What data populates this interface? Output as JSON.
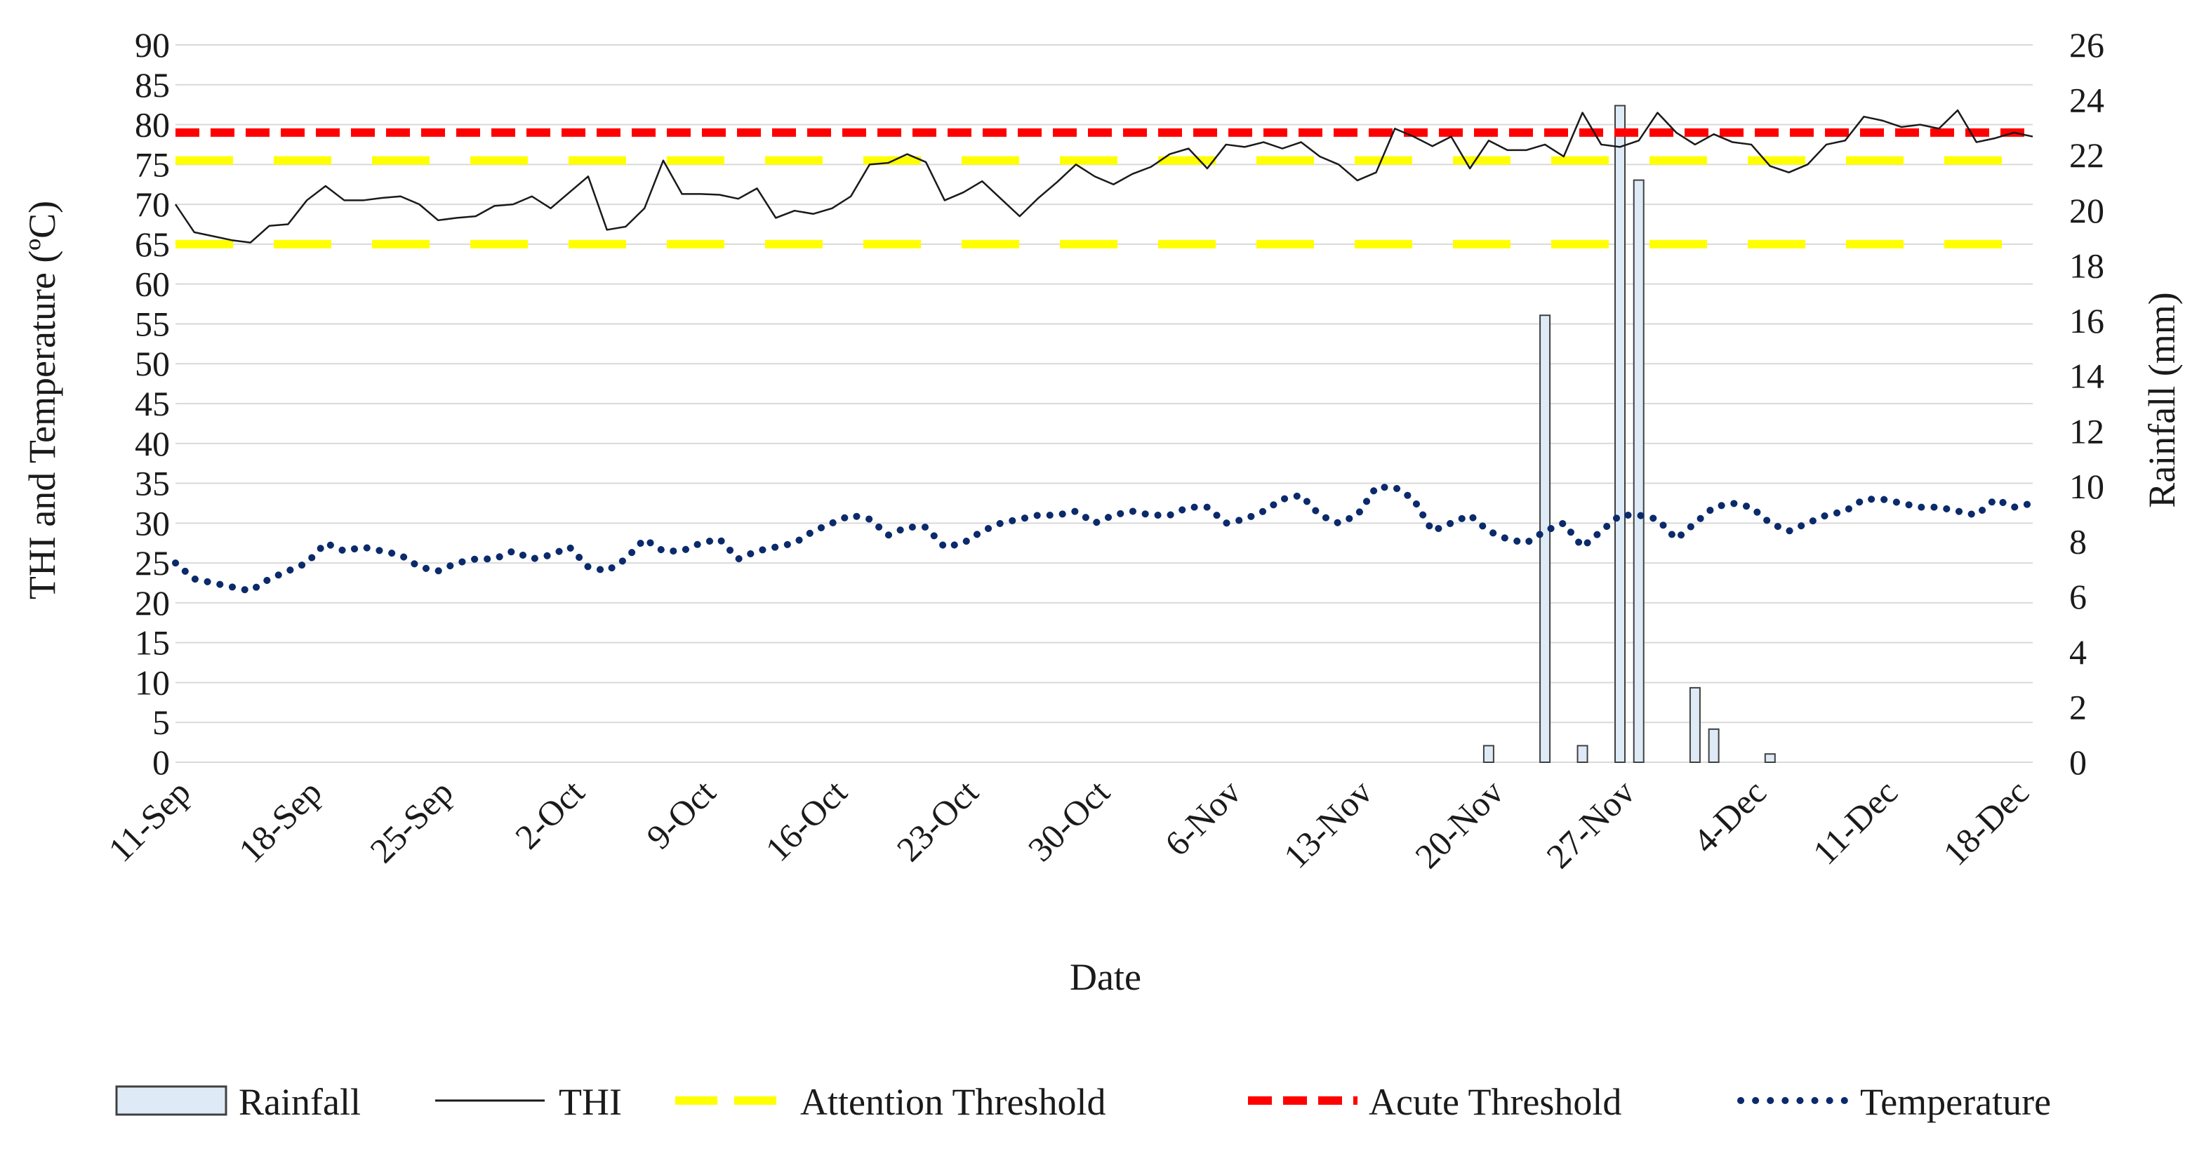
{
  "chart_data": {
    "type": "line",
    "xlabel": "Date",
    "ylabel": "THI and Temperature (ºC)",
    "y2label": "Rainfall (mm)",
    "ylim": [
      0,
      90
    ],
    "y2lim": [
      0,
      26
    ],
    "yticks": [
      0,
      5,
      10,
      15,
      20,
      25,
      30,
      35,
      40,
      45,
      50,
      55,
      60,
      65,
      70,
      75,
      80,
      85,
      90
    ],
    "y2ticks": [
      0,
      2,
      4,
      6,
      8,
      10,
      12,
      14,
      16,
      18,
      20,
      22,
      24,
      26
    ],
    "x_start_day": 0,
    "x_end_day": 99,
    "x_tick_labels": [
      "11-Sep",
      "18-Sep",
      "25-Sep",
      "2-Oct",
      "9-Oct",
      "16-Oct",
      "23-Oct",
      "30-Oct",
      "6-Nov",
      "13-Nov",
      "20-Nov",
      "27-Nov",
      "4-Dec",
      "11-Dec",
      "18-Dec"
    ],
    "x_tick_days": [
      0,
      7,
      14,
      21,
      28,
      35,
      42,
      49,
      56,
      63,
      70,
      77,
      84,
      91,
      98
    ],
    "legend_position": "bottom",
    "legend": [
      "Rainfall",
      "THI",
      "Attention Threshold",
      "Acute Threshold",
      "Temperature"
    ],
    "colors": {
      "rainfall_fill": "#deebf7",
      "rainfall_stroke": "#404040",
      "thi": "#1a1a1a",
      "attention": "#ffff00",
      "acute": "#ff0000",
      "temperature": "#0b2a6b",
      "grid": "#d9d9d9"
    },
    "thresholds": {
      "attention": [
        65,
        75.5
      ],
      "acute": 79
    },
    "series": [
      {
        "name": "THI",
        "type": "line",
        "axis": "left",
        "x_days": [
          0,
          1,
          2,
          3,
          4,
          5,
          6,
          7,
          8,
          9,
          10,
          11,
          12,
          13,
          14,
          15,
          16,
          17,
          18,
          19,
          20,
          21,
          22,
          23,
          24,
          25,
          26,
          27,
          28,
          29,
          30,
          31,
          32,
          33,
          34,
          35,
          36,
          37,
          38,
          39,
          40,
          41,
          42,
          43,
          44,
          45,
          46,
          47,
          48,
          49,
          50,
          51,
          52,
          53,
          54,
          55,
          56,
          57,
          58,
          59,
          60,
          61,
          62,
          63,
          64,
          65,
          66,
          67,
          68,
          69,
          70,
          71,
          72,
          73,
          74,
          75,
          76,
          77,
          78,
          79,
          80,
          81,
          82,
          83,
          84,
          85,
          86,
          87,
          88,
          89,
          90,
          91,
          92,
          93,
          94,
          95,
          96,
          97,
          98,
          99
        ],
        "values": [
          70,
          66.5,
          66,
          65.5,
          65.2,
          67.3,
          67.5,
          70.5,
          72.3,
          70.5,
          70.5,
          70.8,
          71,
          70,
          68,
          68.3,
          68.5,
          69.8,
          70,
          71,
          69.5,
          71.5,
          73.5,
          66.8,
          67.2,
          69.5,
          75.5,
          71.3,
          71.3,
          71.2,
          70.7,
          72,
          68.3,
          69.2,
          68.8,
          69.5,
          71,
          75,
          75.2,
          76.3,
          75.3,
          70.5,
          71.5,
          72.9,
          70.7,
          68.5,
          70.8,
          72.8,
          75,
          73.5,
          72.5,
          73.8,
          74.7,
          76.3,
          77,
          74.5,
          77.5,
          77.2,
          77.8,
          77,
          77.8,
          76,
          75,
          73,
          74,
          79.5,
          78.5,
          77.3,
          78.5,
          74.5,
          78,
          76.8,
          76.8,
          77.5,
          76,
          81.5,
          77.5,
          77.2,
          78,
          81.5,
          79,
          77.5,
          78.8,
          77.8,
          77.5,
          74.8,
          74,
          75,
          77.5,
          78,
          81,
          80.5,
          79.7,
          80,
          79.5,
          81.8,
          77.8,
          78.3,
          79,
          78.5
        ]
      },
      {
        "name": "Temperature",
        "type": "line",
        "axis": "left",
        "x_days": [
          0,
          1,
          2,
          3,
          4,
          5,
          6,
          7,
          8,
          9,
          10,
          11,
          12,
          13,
          14,
          15,
          16,
          17,
          18,
          19,
          20,
          21,
          22,
          23,
          24,
          25,
          26,
          27,
          28,
          29,
          30,
          31,
          32,
          33,
          34,
          35,
          36,
          37,
          38,
          39,
          40,
          41,
          42,
          43,
          44,
          45,
          46,
          47,
          48,
          49,
          50,
          51,
          52,
          53,
          54,
          55,
          56,
          57,
          58,
          59,
          60,
          61,
          62,
          63,
          64,
          65,
          66,
          67,
          68,
          69,
          70,
          71,
          72,
          73,
          74,
          75,
          76,
          77,
          78,
          79,
          80,
          81,
          82,
          83,
          84,
          85,
          86,
          87,
          88,
          89,
          90,
          91,
          92,
          93,
          94,
          95,
          96,
          97,
          98,
          99
        ],
        "values": [
          25,
          23,
          22.5,
          22,
          21.5,
          23,
          24,
          25,
          27.5,
          26.5,
          27,
          26.5,
          26,
          24.5,
          24,
          25,
          25.5,
          25.5,
          26.5,
          25.5,
          26,
          27,
          24.5,
          24,
          25.5,
          28,
          26.5,
          26.5,
          27.5,
          28,
          25.5,
          26.5,
          27,
          27.5,
          29,
          30,
          31,
          30.5,
          28.5,
          29.5,
          29.5,
          27,
          27.5,
          29,
          30,
          30.5,
          31,
          31,
          31.5,
          30,
          31,
          31.5,
          31,
          31,
          32,
          32,
          30,
          30.5,
          31.5,
          33,
          33.5,
          31,
          30,
          31,
          34.5,
          34.5,
          33,
          29,
          30,
          31,
          29,
          28,
          27.5,
          29,
          30,
          27,
          29,
          31,
          31,
          30.5,
          28,
          30,
          32,
          32.5,
          32,
          30,
          29,
          30,
          31,
          31.5,
          33,
          33,
          32.5,
          32,
          32,
          31.5,
          31,
          33,
          32,
          32.5
        ]
      },
      {
        "name": "Rainfall",
        "type": "bar",
        "axis": "right",
        "x_days": [
          70,
          73,
          75,
          77,
          78,
          81,
          82,
          85
        ],
        "values": [
          0.6,
          16.2,
          0.6,
          23.8,
          21.1,
          2.7,
          1.2,
          0.3
        ]
      }
    ]
  }
}
